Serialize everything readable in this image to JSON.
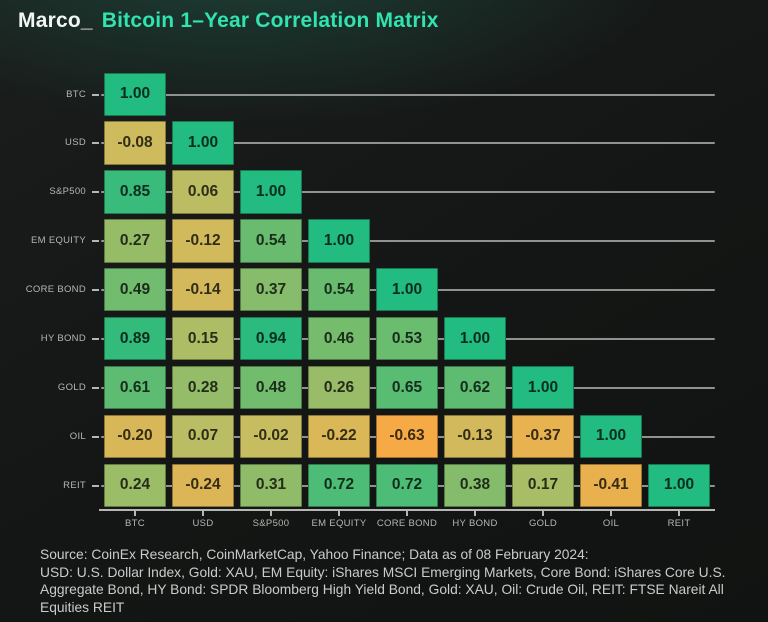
{
  "header": {
    "brand": "Marco_",
    "title": "Bitcoin 1–Year Correlation Matrix"
  },
  "theme": {
    "background": "#141615",
    "title_accent": "#31e3ae",
    "brand_color": "#f3f5f4",
    "axis_color": "#b4b7b4",
    "gridline_color": "#8f928f",
    "label_color": "#b3b7b4",
    "footer_color": "#c9cccb"
  },
  "chart_data": {
    "type": "heatmap",
    "title": "Bitcoin 1-Year Correlation Matrix",
    "categories": [
      "BTC",
      "USD",
      "S&P500",
      "EM EQUITY",
      "CORE BOND",
      "HY BOND",
      "GOLD",
      "OIL",
      "REIT"
    ],
    "matrix": [
      [
        1.0
      ],
      [
        -0.08,
        1.0
      ],
      [
        0.85,
        0.06,
        1.0
      ],
      [
        0.27,
        -0.12,
        0.54,
        1.0
      ],
      [
        0.49,
        -0.14,
        0.37,
        0.54,
        1.0
      ],
      [
        0.89,
        0.15,
        0.94,
        0.46,
        0.53,
        1.0
      ],
      [
        0.61,
        0.28,
        0.48,
        0.26,
        0.65,
        0.62,
        1.0
      ],
      [
        -0.2,
        0.07,
        -0.02,
        -0.22,
        -0.63,
        -0.13,
        -0.37,
        1.0
      ],
      [
        0.24,
        -0.24,
        0.31,
        0.72,
        0.72,
        0.38,
        0.17,
        -0.41,
        1.0
      ]
    ],
    "value_format": "2dp",
    "colormap_stops": [
      {
        "v": -0.7,
        "color": "#f9a843"
      },
      {
        "v": -0.35,
        "color": "#e6b350"
      },
      {
        "v": 0.0,
        "color": "#c6bd62"
      },
      {
        "v": 0.5,
        "color": "#6fbc6e"
      },
      {
        "v": 1.0,
        "color": "#22bb80"
      }
    ],
    "layout": {
      "shape": "lower-triangle",
      "gridlines": "horizontal",
      "legend": false,
      "x_axis": "bottom",
      "y_axis_labels": "left"
    }
  },
  "footer": {
    "lines": [
      "Source: CoinEx Research, CoinMarketCap, Yahoo Finance; Data as of 08 February 2024:",
      "USD: U.S. Dollar Index, Gold: XAU, EM Equity: iShares MSCI Emerging Markets, Core Bond: iShares Core U.S.",
      "Aggregate Bond, HY Bond: SPDR Bloomberg High Yield Bond, Gold: XAU, Oil: Crude Oil, REIT: FTSE Nareit All",
      "Equities REIT"
    ]
  }
}
